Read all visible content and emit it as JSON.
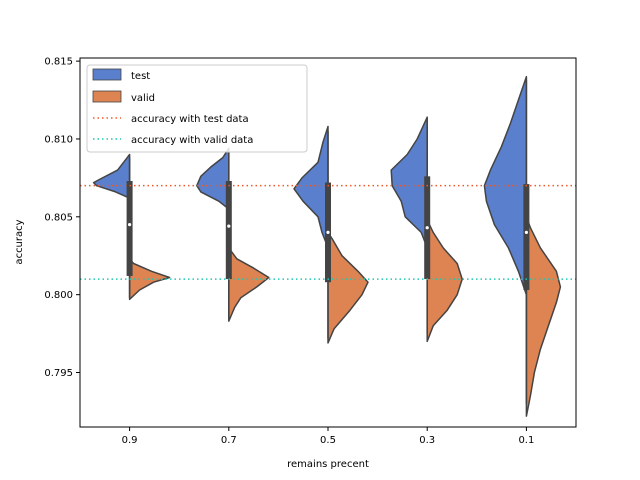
{
  "chart_data": {
    "type": "violin",
    "title": "",
    "xlabel": "remains precent",
    "ylabel": "accuracy",
    "categories": [
      "0.9",
      "0.7",
      "0.5",
      "0.3",
      "0.1"
    ],
    "ylim": [
      0.7915,
      0.8152
    ],
    "yticks": [
      0.795,
      0.8,
      0.805,
      0.81,
      0.815
    ],
    "ytick_labels": [
      "0.795",
      "0.800",
      "0.805",
      "0.810",
      "0.815"
    ],
    "grid": false,
    "legend_position": "top-left",
    "series": [
      {
        "name": "test",
        "side": "left",
        "color": "#5a7fcc",
        "profiles": [
          [
            [
              0.8062,
              0
            ],
            [
              0.8066,
              14
            ],
            [
              0.807,
              33
            ],
            [
              0.8072,
              36
            ],
            [
              0.8074,
              30
            ],
            [
              0.808,
              12
            ],
            [
              0.8085,
              6
            ],
            [
              0.809,
              0
            ]
          ],
          [
            [
              0.8055,
              0
            ],
            [
              0.806,
              10
            ],
            [
              0.8066,
              28
            ],
            [
              0.807,
              32
            ],
            [
              0.8076,
              28
            ],
            [
              0.8082,
              18
            ],
            [
              0.8088,
              6
            ],
            [
              0.8094,
              0
            ]
          ],
          [
            [
              0.803,
              0
            ],
            [
              0.804,
              6
            ],
            [
              0.805,
              10
            ],
            [
              0.806,
              25
            ],
            [
              0.8068,
              34
            ],
            [
              0.8075,
              26
            ],
            [
              0.8085,
              10
            ],
            [
              0.8098,
              5
            ],
            [
              0.8108,
              0
            ]
          ],
          [
            [
              0.803,
              0
            ],
            [
              0.804,
              6
            ],
            [
              0.805,
              22
            ],
            [
              0.806,
              26
            ],
            [
              0.807,
              35
            ],
            [
              0.808,
              36
            ],
            [
              0.809,
              20
            ],
            [
              0.81,
              10
            ],
            [
              0.8114,
              0
            ]
          ],
          [
            [
              0.8,
              0
            ],
            [
              0.8015,
              8
            ],
            [
              0.803,
              18
            ],
            [
              0.8045,
              32
            ],
            [
              0.806,
              40
            ],
            [
              0.807,
              42
            ],
            [
              0.808,
              36
            ],
            [
              0.8095,
              25
            ],
            [
              0.811,
              16
            ],
            [
              0.8125,
              8
            ],
            [
              0.814,
              0
            ]
          ]
        ]
      },
      {
        "name": "valid",
        "side": "right",
        "color": "#dd8452",
        "profiles": [
          [
            [
              0.7997,
              0
            ],
            [
              0.8003,
              10
            ],
            [
              0.8008,
              24
            ],
            [
              0.8011,
              40
            ],
            [
              0.8015,
              22
            ],
            [
              0.802,
              4
            ],
            [
              0.8023,
              0
            ]
          ],
          [
            [
              0.7983,
              0
            ],
            [
              0.7992,
              6
            ],
            [
              0.7998,
              12
            ],
            [
              0.8005,
              28
            ],
            [
              0.8011,
              40
            ],
            [
              0.8017,
              25
            ],
            [
              0.8023,
              8
            ],
            [
              0.803,
              0
            ]
          ],
          [
            [
              0.7969,
              0
            ],
            [
              0.7978,
              6
            ],
            [
              0.799,
              22
            ],
            [
              0.8,
              34
            ],
            [
              0.8008,
              40
            ],
            [
              0.8015,
              30
            ],
            [
              0.8025,
              14
            ],
            [
              0.8035,
              5
            ],
            [
              0.804,
              0
            ]
          ],
          [
            [
              0.797,
              0
            ],
            [
              0.798,
              6
            ],
            [
              0.799,
              20
            ],
            [
              0.8,
              30
            ],
            [
              0.801,
              35
            ],
            [
              0.802,
              30
            ],
            [
              0.803,
              16
            ],
            [
              0.804,
              6
            ],
            [
              0.8048,
              0
            ]
          ],
          [
            [
              0.7922,
              0
            ],
            [
              0.7935,
              4
            ],
            [
              0.795,
              8
            ],
            [
              0.7965,
              14
            ],
            [
              0.798,
              22
            ],
            [
              0.7995,
              30
            ],
            [
              0.8005,
              34
            ],
            [
              0.8015,
              30
            ],
            [
              0.803,
              14
            ],
            [
              0.8043,
              4
            ],
            [
              0.805,
              0
            ]
          ]
        ]
      }
    ],
    "box": [
      {
        "q1": 0.8012,
        "q3": 0.8073,
        "median": 0.8045,
        "w_low": 0.7998,
        "w_high": 0.8088
      },
      {
        "q1": 0.801,
        "q3": 0.8073,
        "median": 0.8044,
        "w_low": 0.7985,
        "w_high": 0.8092
      },
      {
        "q1": 0.8008,
        "q3": 0.8072,
        "median": 0.804,
        "w_low": 0.7972,
        "w_high": 0.8105
      },
      {
        "q1": 0.801,
        "q3": 0.8076,
        "median": 0.8043,
        "w_low": 0.7975,
        "w_high": 0.8112
      },
      {
        "q1": 0.8003,
        "q3": 0.8071,
        "median": 0.804,
        "w_low": 0.793,
        "w_high": 0.8138
      }
    ],
    "reference_lines": [
      {
        "name": "accuracy with test data",
        "y": 0.807,
        "color": "#f05a28",
        "style": "dotted"
      },
      {
        "name": "accuracy with valid data",
        "y": 0.801,
        "color": "#1ec8b4",
        "style": "dotted"
      }
    ]
  }
}
